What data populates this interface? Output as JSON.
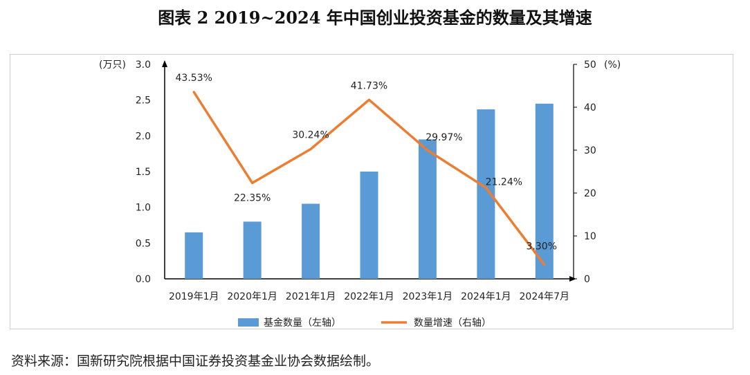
{
  "title": "图表 2 2019~2024 年中国创业投资基金的数量及其增速",
  "source": "资料来源：国新研究院根据中国证券投资基金业协会数据绘制。",
  "chart_data": {
    "type": "bar",
    "categories": [
      "2019年1月",
      "2020年1月",
      "2021年1月",
      "2022年1月",
      "2023年1月",
      "2024年1月",
      "2024年7月"
    ],
    "series": [
      {
        "name": "基金数量（左轴）",
        "type": "bar",
        "axis": "left",
        "color": "#5b9bd5",
        "values": [
          0.65,
          0.8,
          1.05,
          1.5,
          1.95,
          2.37,
          2.45
        ]
      },
      {
        "name": "数量增速（右轴）",
        "type": "line",
        "axis": "right",
        "color": "#ed7d31",
        "values": [
          43.53,
          22.35,
          30.24,
          41.73,
          29.97,
          21.24,
          3.3
        ],
        "labels": [
          "43.53%",
          "22.35%",
          "30.24%",
          "41.73%",
          "29.97%",
          "21.24%",
          "3.30%"
        ]
      }
    ],
    "y_left": {
      "unit": "(万只)",
      "ylim": [
        0,
        3.0
      ],
      "ticks": [
        "0.0",
        "0.5",
        "1.0",
        "1.5",
        "2.0",
        "2.5",
        "3.0"
      ]
    },
    "y_right": {
      "unit": "(%)",
      "ylim": [
        0,
        50
      ],
      "ticks": [
        "0",
        "10",
        "20",
        "30",
        "40",
        "50"
      ]
    },
    "grid": false,
    "legend_position": "bottom"
  }
}
